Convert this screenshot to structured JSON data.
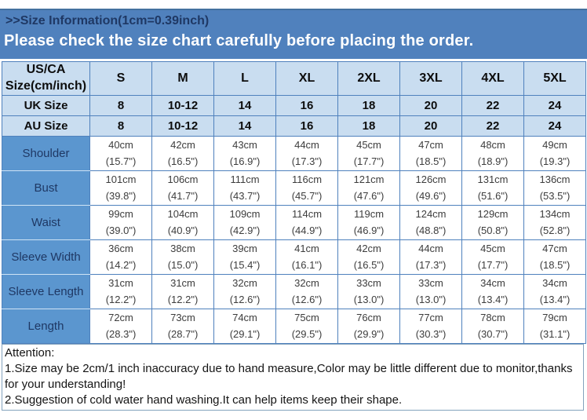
{
  "banner": {
    "title": ">>Size Information(1cm=0.39inch)",
    "notice": "Please check the size chart carefully before placing the order."
  },
  "colors": {
    "banner_blue": "#5081bd",
    "header_light_blue": "#c9ddf0",
    "measure_label_blue": "#5b96cf",
    "grid_border_blue": "#4f81bd",
    "title_navy": "#1f3864"
  },
  "table": {
    "corner": {
      "line1": "US/CA",
      "line2": "Size(cm/inch)"
    },
    "size_columns": [
      "S",
      "M",
      "L",
      "XL",
      "2XL",
      "3XL",
      "4XL",
      "5XL"
    ],
    "conversion_rows": [
      {
        "label": "UK Size",
        "values": [
          "8",
          "10-12",
          "14",
          "16",
          "18",
          "20",
          "22",
          "24"
        ]
      },
      {
        "label": "AU Size",
        "values": [
          "8",
          "10-12",
          "14",
          "16",
          "18",
          "20",
          "22",
          "24"
        ]
      }
    ],
    "measurement_rows": [
      {
        "label": "Shoulder",
        "cells": [
          {
            "cm": "40cm",
            "inch": "(15.7\")"
          },
          {
            "cm": "42cm",
            "inch": "(16.5\")"
          },
          {
            "cm": "43cm",
            "inch": "(16.9\")"
          },
          {
            "cm": "44cm",
            "inch": "(17.3\")"
          },
          {
            "cm": "45cm",
            "inch": "(17.7\")"
          },
          {
            "cm": "47cm",
            "inch": "(18.5\")"
          },
          {
            "cm": "48cm",
            "inch": "(18.9\")"
          },
          {
            "cm": "49cm",
            "inch": "(19.3\")"
          }
        ]
      },
      {
        "label": "Bust",
        "cells": [
          {
            "cm": "101cm",
            "inch": "(39.8\")"
          },
          {
            "cm": "106cm",
            "inch": "(41.7\")"
          },
          {
            "cm": "111cm",
            "inch": "(43.7\")"
          },
          {
            "cm": "116cm",
            "inch": "(45.7\")"
          },
          {
            "cm": "121cm",
            "inch": "(47.6\")"
          },
          {
            "cm": "126cm",
            "inch": "(49.6\")"
          },
          {
            "cm": "131cm",
            "inch": "(51.6\")"
          },
          {
            "cm": "136cm",
            "inch": "(53.5\")"
          }
        ]
      },
      {
        "label": "Waist",
        "cells": [
          {
            "cm": "99cm",
            "inch": "(39.0\")"
          },
          {
            "cm": "104cm",
            "inch": "(40.9\")"
          },
          {
            "cm": "109cm",
            "inch": "(42.9\")"
          },
          {
            "cm": "114cm",
            "inch": "(44.9\")"
          },
          {
            "cm": "119cm",
            "inch": "(46.9\")"
          },
          {
            "cm": "124cm",
            "inch": "(48.8\")"
          },
          {
            "cm": "129cm",
            "inch": "(50.8\")"
          },
          {
            "cm": "134cm",
            "inch": "(52.8\")"
          }
        ]
      },
      {
        "label": "Sleeve Width",
        "cells": [
          {
            "cm": "36cm",
            "inch": "(14.2\")"
          },
          {
            "cm": "38cm",
            "inch": "(15.0\")"
          },
          {
            "cm": "39cm",
            "inch": "(15.4\")"
          },
          {
            "cm": "41cm",
            "inch": "(16.1\")"
          },
          {
            "cm": "42cm",
            "inch": "(16.5\")"
          },
          {
            "cm": "44cm",
            "inch": "(17.3\")"
          },
          {
            "cm": "45cm",
            "inch": "(17.7\")"
          },
          {
            "cm": "47cm",
            "inch": "(18.5\")"
          }
        ]
      },
      {
        "label": "Sleeve Length",
        "cells": [
          {
            "cm": "31cm",
            "inch": "(12.2\")"
          },
          {
            "cm": "31cm",
            "inch": "(12.2\")"
          },
          {
            "cm": "32cm",
            "inch": "(12.6\")"
          },
          {
            "cm": "32cm",
            "inch": "(12.6\")"
          },
          {
            "cm": "33cm",
            "inch": "(13.0\")"
          },
          {
            "cm": "33cm",
            "inch": "(13.0\")"
          },
          {
            "cm": "34cm",
            "inch": "(13.4\")"
          },
          {
            "cm": "34cm",
            "inch": "(13.4\")"
          }
        ]
      },
      {
        "label": "Length",
        "cells": [
          {
            "cm": "72cm",
            "inch": "(28.3\")"
          },
          {
            "cm": "73cm",
            "inch": "(28.7\")"
          },
          {
            "cm": "74cm",
            "inch": "(29.1\")"
          },
          {
            "cm": "75cm",
            "inch": "(29.5\")"
          },
          {
            "cm": "76cm",
            "inch": "(29.9\")"
          },
          {
            "cm": "77cm",
            "inch": "(30.3\")"
          },
          {
            "cm": "78cm",
            "inch": "(30.7\")"
          },
          {
            "cm": "79cm",
            "inch": "(31.1\")"
          }
        ]
      }
    ]
  },
  "attention": {
    "title": "Attention:",
    "notes": [
      "1.Size may be 2cm/1 inch inaccuracy due to hand measure,Color may be little different due to monitor,thanks for your understanding!",
      "2.Suggestion of cold water hand washing.It can help items keep their shape."
    ]
  }
}
